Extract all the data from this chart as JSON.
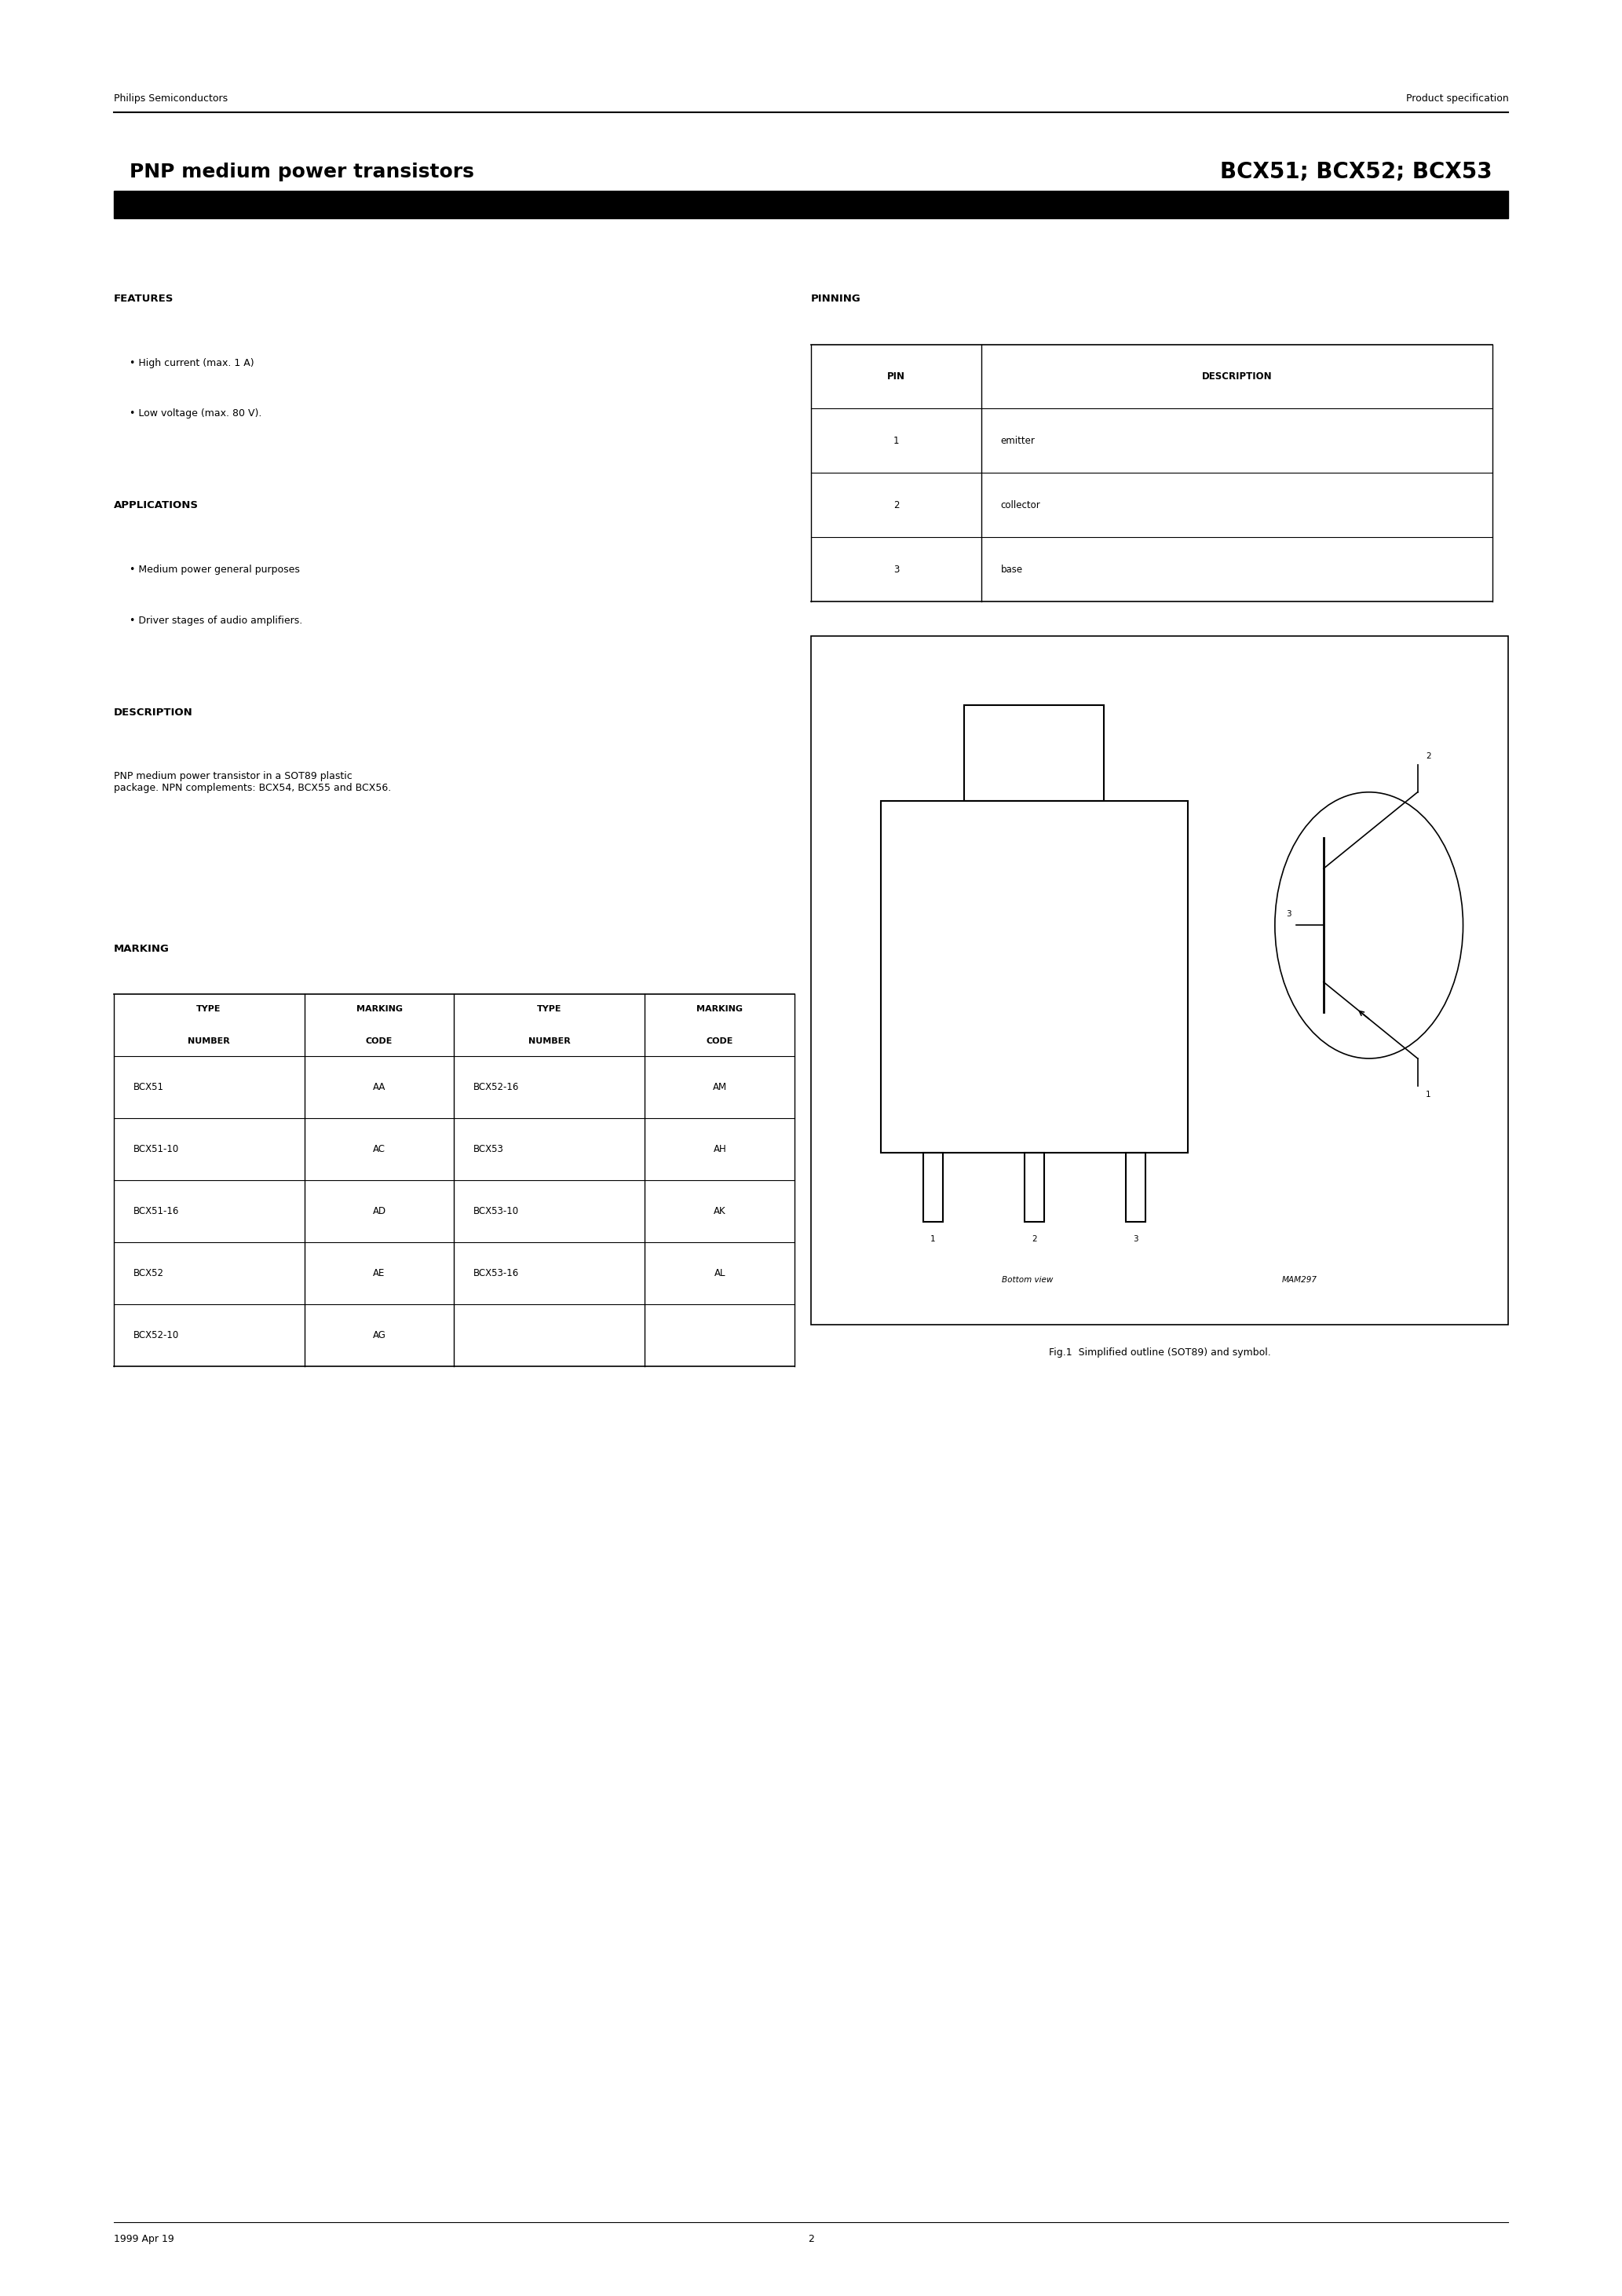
{
  "page_width": 20.66,
  "page_height": 29.24,
  "bg_color": "#ffffff",
  "header_left": "Philips Semiconductors",
  "header_right": "Product specification",
  "title_left": "PNP medium power transistors",
  "title_right": "BCX51; BCX52; BCX53",
  "features_title": "FEATURES",
  "features": [
    "High current (max. 1 A)",
    "Low voltage (max. 80 V)."
  ],
  "applications_title": "APPLICATIONS",
  "applications": [
    "Medium power general purposes",
    "Driver stages of audio amplifiers."
  ],
  "description_title": "DESCRIPTION",
  "description_text": "PNP medium power transistor in a SOT89 plastic\npackage. NPN complements: BCX54, BCX55 and BCX56.",
  "marking_title": "MARKING",
  "marking_headers": [
    "TYPE\nNUMBER",
    "MARKING\nCODE",
    "TYPE\nNUMBER",
    "MARKING\nCODE"
  ],
  "marking_rows": [
    [
      "BCX51",
      "AA",
      "BCX52-16",
      "AM"
    ],
    [
      "BCX51-10",
      "AC",
      "BCX53",
      "AH"
    ],
    [
      "BCX51-16",
      "AD",
      "BCX53-10",
      "AK"
    ],
    [
      "BCX52",
      "AE",
      "BCX53-16",
      "AL"
    ],
    [
      "BCX52-10",
      "AG",
      "",
      ""
    ]
  ],
  "pinning_title": "PINNING",
  "pinning_headers": [
    "PIN",
    "DESCRIPTION"
  ],
  "pinning_rows": [
    [
      "1",
      "emitter"
    ],
    [
      "2",
      "collector"
    ],
    [
      "3",
      "base"
    ]
  ],
  "fig_caption": "Fig.1  Simplified outline (SOT89) and symbol.",
  "footer_left": "1999 Apr 19",
  "footer_center": "2"
}
